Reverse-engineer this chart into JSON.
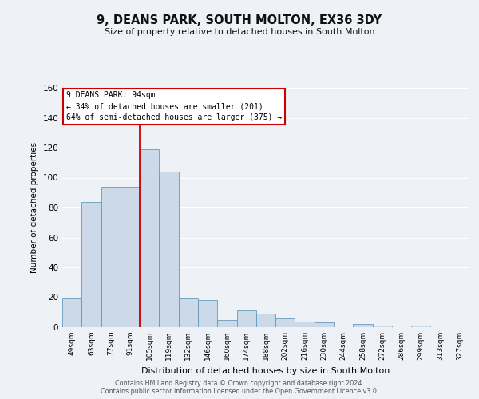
{
  "title": "9, DEANS PARK, SOUTH MOLTON, EX36 3DY",
  "subtitle": "Size of property relative to detached houses in South Molton",
  "xlabel": "Distribution of detached houses by size in South Molton",
  "ylabel": "Number of detached properties",
  "bar_color": "#ccd9e8",
  "bar_edge_color": "#6699bb",
  "background_color": "#eef2f7",
  "grid_color": "#ffffff",
  "bin_labels": [
    "49sqm",
    "63sqm",
    "77sqm",
    "91sqm",
    "105sqm",
    "119sqm",
    "132sqm",
    "146sqm",
    "160sqm",
    "174sqm",
    "188sqm",
    "202sqm",
    "216sqm",
    "230sqm",
    "244sqm",
    "258sqm",
    "272sqm",
    "286sqm",
    "299sqm",
    "313sqm",
    "327sqm"
  ],
  "bar_heights": [
    19,
    84,
    94,
    94,
    119,
    104,
    19,
    18,
    5,
    11,
    9,
    6,
    4,
    3,
    0,
    2,
    1,
    0,
    1,
    0,
    0
  ],
  "vline_x": 3.5,
  "vline_color": "#cc0000",
  "ylim": [
    0,
    160
  ],
  "yticks": [
    0,
    20,
    40,
    60,
    80,
    100,
    120,
    140,
    160
  ],
  "annotation_title": "9 DEANS PARK: 94sqm",
  "annotation_line1": "← 34% of detached houses are smaller (201)",
  "annotation_line2": "64% of semi-detached houses are larger (375) →",
  "annotation_box_color": "#ffffff",
  "annotation_box_edge": "#cc0000",
  "footer1": "Contains HM Land Registry data © Crown copyright and database right 2024.",
  "footer2": "Contains public sector information licensed under the Open Government Licence v3.0."
}
